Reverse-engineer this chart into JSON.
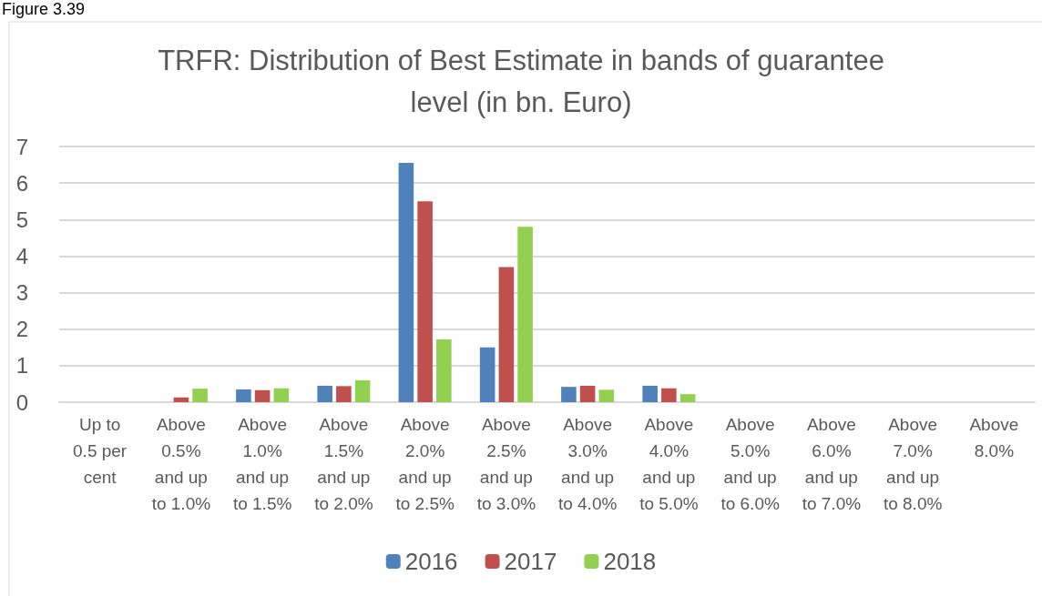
{
  "chart_data": {
    "type": "bar",
    "title": "TRFR: Distribution of Best Estimate in bands of guarantee level (in bn. Euro)",
    "annotations": [
      "Figure 3.39"
    ],
    "categories": [
      "Up to 0.5 per cent",
      "Above 0.5% and up to 1.0%",
      "Above 1.0% and up to 1.5%",
      "Above 1.5% and up to 2.0%",
      "Above 2.0% and up to 2.5%",
      "Above 2.5% and up to 3.0%",
      "Above 3.0% and up to 4.0%",
      "Above 4.0% and up to 5.0%",
      "Above 5.0% and up to 6.0%",
      "Above 6.0% and up to 7.0%",
      "Above 7.0% and up to 8.0%",
      "Above 8.0%"
    ],
    "series": [
      {
        "name": "2016",
        "color": "#4f81bd",
        "values": [
          0,
          0,
          0.35,
          0.45,
          6.55,
          1.5,
          0.42,
          0.45,
          0,
          0,
          0,
          0
        ]
      },
      {
        "name": "2017",
        "color": "#c0504d",
        "values": [
          0,
          0.13,
          0.33,
          0.44,
          5.5,
          3.7,
          0.45,
          0.38,
          0,
          0,
          0,
          0
        ]
      },
      {
        "name": "2018",
        "color": "#92d050",
        "values": [
          0,
          0.37,
          0.38,
          0.6,
          1.72,
          4.8,
          0.34,
          0.22,
          0,
          0,
          0,
          0
        ]
      }
    ],
    "ylim": [
      0,
      7
    ],
    "yticks": [
      0,
      1,
      2,
      3,
      4,
      5,
      6,
      7
    ],
    "grid": "y",
    "legend": "bottom"
  }
}
